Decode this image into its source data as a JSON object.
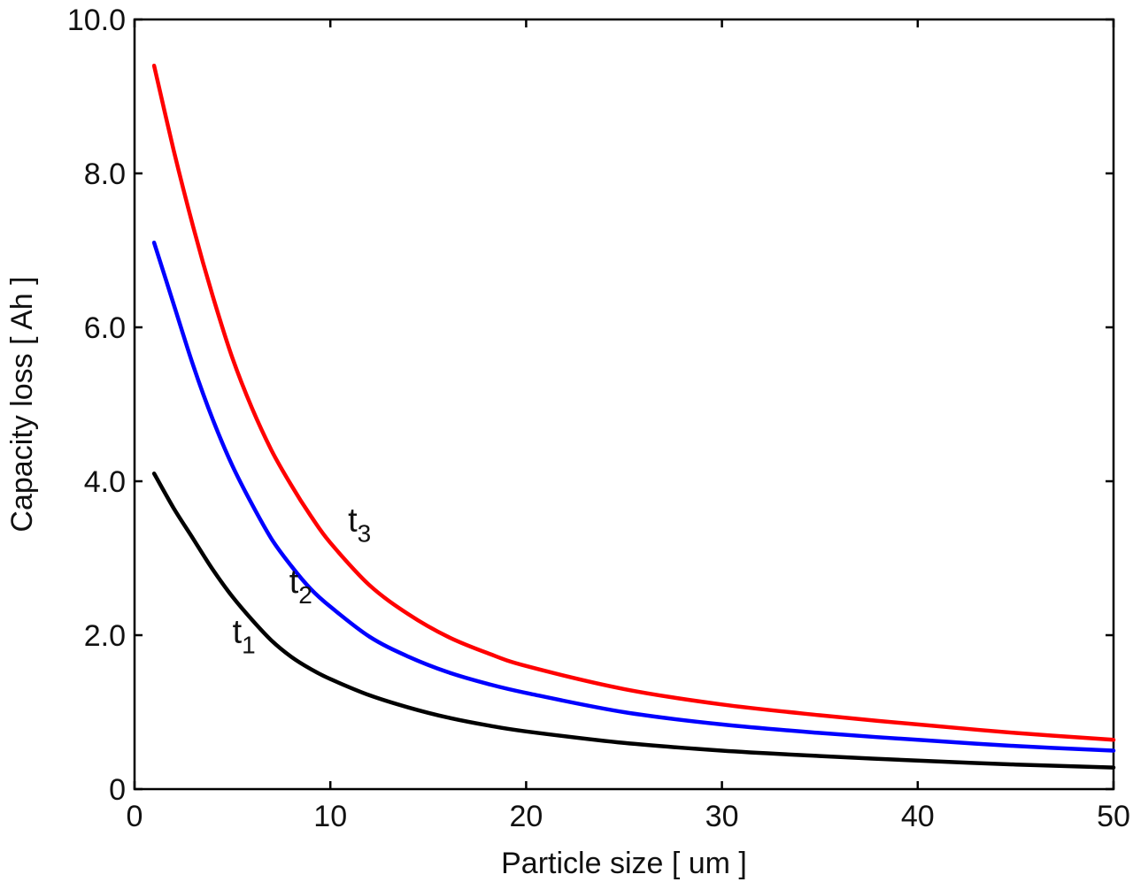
{
  "chart_data": {
    "type": "line",
    "title": "",
    "xlabel": "Particle size  [ um ]",
    "ylabel": "Capacity loss  [ Ah ]",
    "xlim": [
      0,
      50
    ],
    "ylim": [
      0,
      10
    ],
    "xticks": [
      0,
      10,
      20,
      30,
      40,
      50
    ],
    "xtick_labels": [
      "0",
      "10",
      "20",
      "30",
      "40",
      "50"
    ],
    "yticks": [
      0,
      2,
      4,
      6,
      8,
      10
    ],
    "ytick_labels": [
      "0",
      "2.0",
      "4.0",
      "6.0",
      "8.0",
      "10.0"
    ],
    "grid": false,
    "legend": "none",
    "series": [
      {
        "color": "#000000",
        "x": [
          1,
          2,
          3,
          4,
          5,
          6,
          7,
          8,
          9,
          10,
          12,
          14,
          16,
          18,
          20,
          25,
          30,
          35,
          40,
          45,
          50
        ],
        "y": [
          4.1,
          3.65,
          3.25,
          2.85,
          2.5,
          2.2,
          1.93,
          1.72,
          1.56,
          1.43,
          1.22,
          1.06,
          0.93,
          0.83,
          0.75,
          0.6,
          0.5,
          0.43,
          0.37,
          0.32,
          0.28
        ]
      },
      {
        "color": "#0000ff",
        "x": [
          1,
          2,
          3,
          4,
          5,
          6,
          7,
          8,
          9,
          10,
          12,
          14,
          16,
          18,
          20,
          25,
          30,
          35,
          40,
          45,
          50
        ],
        "y": [
          7.1,
          6.3,
          5.5,
          4.8,
          4.2,
          3.7,
          3.25,
          2.9,
          2.6,
          2.37,
          1.98,
          1.72,
          1.52,
          1.37,
          1.25,
          1.0,
          0.84,
          0.73,
          0.64,
          0.56,
          0.5
        ]
      },
      {
        "color": "#ff0000",
        "x": [
          1,
          2,
          3,
          4,
          5,
          6,
          7,
          8,
          9,
          10,
          12,
          14,
          16,
          18,
          20,
          25,
          30,
          35,
          40,
          45,
          50
        ],
        "y": [
          9.4,
          8.3,
          7.3,
          6.4,
          5.6,
          4.95,
          4.4,
          3.95,
          3.55,
          3.2,
          2.65,
          2.27,
          1.98,
          1.77,
          1.6,
          1.3,
          1.1,
          0.96,
          0.84,
          0.73,
          0.64
        ]
      }
    ],
    "annotations": [
      {
        "text": "t",
        "sub": "1",
        "x": 5.0,
        "y": 1.9
      },
      {
        "text": "t",
        "sub": "2",
        "x": 7.9,
        "y": 2.55
      },
      {
        "text": "t",
        "sub": "3",
        "x": 10.9,
        "y": 3.35
      }
    ]
  }
}
